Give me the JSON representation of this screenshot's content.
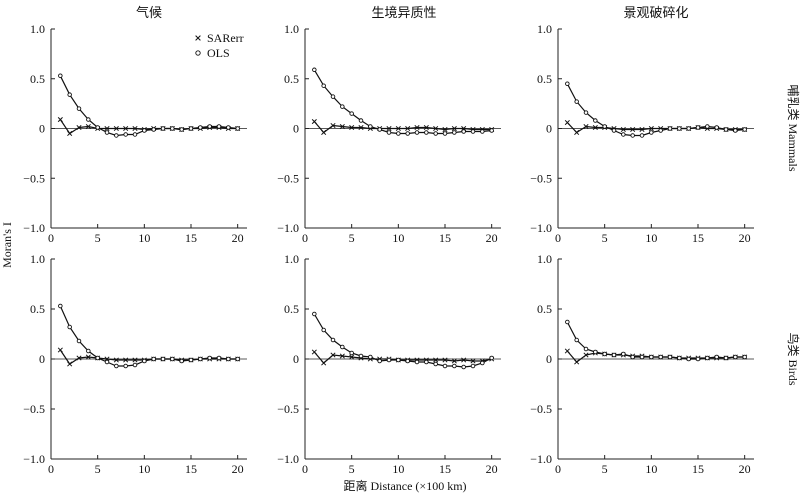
{
  "figure": {
    "col_titles": [
      "气候",
      "生境异质性",
      "景观破碎化"
    ],
    "row_labels": [
      "哺乳类 Mammals",
      "鸟类 Birds"
    ],
    "ylabel": "Moran's I",
    "xlabel": "距离 Distance (×100 km)"
  },
  "legend": {
    "items": [
      {
        "name": "SARerr",
        "marker": "x"
      },
      {
        "name": "OLS",
        "marker": "o"
      }
    ]
  },
  "colors": {
    "line": "#111111",
    "axis": "#222222",
    "background": "#ffffff"
  },
  "chart_data": [
    {
      "type": "line",
      "panel": "Mammals-Climate",
      "x": [
        1,
        2,
        3,
        4,
        5,
        6,
        7,
        8,
        9,
        10,
        11,
        12,
        13,
        14,
        15,
        16,
        17,
        18,
        19,
        20
      ],
      "xlim": [
        0,
        21
      ],
      "ylim": [
        -1.0,
        1.0
      ],
      "xticks": [
        0,
        5,
        10,
        15,
        20
      ],
      "yticks": [
        -1.0,
        -0.5,
        0,
        0.5,
        1.0
      ],
      "series": [
        {
          "name": "SARerr",
          "values": [
            0.09,
            -0.05,
            0.01,
            0.02,
            0.0,
            0.0,
            0.0,
            0.0,
            0.0,
            -0.01,
            0.0,
            0.0,
            0.0,
            -0.01,
            0.0,
            0.0,
            0.01,
            0.01,
            0.0,
            0.0
          ]
        },
        {
          "name": "OLS",
          "values": [
            0.53,
            0.34,
            0.2,
            0.09,
            0.01,
            -0.04,
            -0.07,
            -0.06,
            -0.06,
            -0.02,
            -0.01,
            0.0,
            0.0,
            -0.01,
            0.0,
            0.01,
            0.02,
            0.02,
            0.01,
            0.0
          ]
        }
      ]
    },
    {
      "type": "line",
      "panel": "Mammals-Habitat heterogeneity",
      "x": [
        1,
        2,
        3,
        4,
        5,
        6,
        7,
        8,
        9,
        10,
        11,
        12,
        13,
        14,
        15,
        16,
        17,
        18,
        19,
        20
      ],
      "xlim": [
        0,
        21
      ],
      "ylim": [
        -1.0,
        1.0
      ],
      "xticks": [
        0,
        5,
        10,
        15,
        20
      ],
      "yticks": [
        -1.0,
        -0.5,
        0,
        0.5,
        1.0
      ],
      "series": [
        {
          "name": "SARerr",
          "values": [
            0.07,
            -0.04,
            0.03,
            0.02,
            0.01,
            0.01,
            0.0,
            0.0,
            0.0,
            0.0,
            0.0,
            0.01,
            0.01,
            0.0,
            -0.01,
            0.0,
            0.0,
            -0.01,
            -0.01,
            -0.01
          ]
        },
        {
          "name": "OLS",
          "values": [
            0.59,
            0.43,
            0.32,
            0.22,
            0.15,
            0.08,
            0.02,
            -0.01,
            -0.04,
            -0.05,
            -0.05,
            -0.04,
            -0.04,
            -0.05,
            -0.05,
            -0.04,
            -0.03,
            -0.03,
            -0.03,
            -0.02
          ]
        }
      ]
    },
    {
      "type": "line",
      "panel": "Mammals-Landscape fragmentation",
      "x": [
        1,
        2,
        3,
        4,
        5,
        6,
        7,
        8,
        9,
        10,
        11,
        12,
        13,
        14,
        15,
        16,
        17,
        18,
        19,
        20
      ],
      "xlim": [
        0,
        21
      ],
      "ylim": [
        -1.0,
        1.0
      ],
      "xticks": [
        0,
        5,
        10,
        15,
        20
      ],
      "yticks": [
        -1.0,
        -0.5,
        0,
        0.5,
        1.0
      ],
      "series": [
        {
          "name": "SARerr",
          "values": [
            0.06,
            -0.04,
            0.02,
            0.01,
            0.01,
            0.0,
            -0.01,
            -0.01,
            -0.01,
            0.0,
            0.0,
            0.0,
            0.0,
            0.0,
            0.01,
            0.0,
            0.0,
            -0.01,
            -0.01,
            -0.01
          ]
        },
        {
          "name": "OLS",
          "values": [
            0.45,
            0.27,
            0.16,
            0.08,
            0.02,
            -0.02,
            -0.06,
            -0.07,
            -0.07,
            -0.04,
            -0.02,
            0.0,
            0.0,
            0.0,
            0.01,
            0.02,
            0.01,
            -0.01,
            -0.02,
            -0.01
          ]
        }
      ]
    },
    {
      "type": "line",
      "panel": "Birds-Climate",
      "x": [
        1,
        2,
        3,
        4,
        5,
        6,
        7,
        8,
        9,
        10,
        11,
        12,
        13,
        14,
        15,
        16,
        17,
        18,
        19,
        20
      ],
      "xlim": [
        0,
        21
      ],
      "ylim": [
        -1.0,
        1.0
      ],
      "xticks": [
        0,
        5,
        10,
        15,
        20
      ],
      "yticks": [
        -1.0,
        -0.5,
        0,
        0.5,
        1.0
      ],
      "series": [
        {
          "name": "SARerr",
          "values": [
            0.09,
            -0.05,
            0.01,
            0.02,
            0.01,
            0.0,
            -0.01,
            -0.01,
            -0.01,
            -0.01,
            0.0,
            0.0,
            0.0,
            -0.01,
            -0.01,
            0.0,
            0.0,
            0.0,
            0.0,
            0.0
          ]
        },
        {
          "name": "OLS",
          "values": [
            0.53,
            0.32,
            0.18,
            0.08,
            0.01,
            -0.03,
            -0.07,
            -0.07,
            -0.06,
            -0.02,
            0.0,
            0.0,
            0.0,
            -0.02,
            -0.01,
            0.0,
            0.01,
            0.01,
            0.0,
            0.0
          ]
        }
      ]
    },
    {
      "type": "line",
      "panel": "Birds-Habitat heterogeneity",
      "x": [
        1,
        2,
        3,
        4,
        5,
        6,
        7,
        8,
        9,
        10,
        11,
        12,
        13,
        14,
        15,
        16,
        17,
        18,
        19,
        20
      ],
      "xlim": [
        0,
        21
      ],
      "ylim": [
        -1.0,
        1.0
      ],
      "xticks": [
        0,
        5,
        10,
        15,
        20
      ],
      "yticks": [
        -1.0,
        -0.5,
        0,
        0.5,
        1.0
      ],
      "series": [
        {
          "name": "SARerr",
          "values": [
            0.07,
            -0.04,
            0.04,
            0.03,
            0.02,
            0.01,
            0.0,
            0.0,
            0.0,
            -0.01,
            -0.01,
            -0.01,
            -0.01,
            -0.01,
            -0.01,
            -0.02,
            -0.01,
            -0.02,
            -0.02,
            0.0
          ]
        },
        {
          "name": "OLS",
          "values": [
            0.45,
            0.29,
            0.19,
            0.12,
            0.06,
            0.03,
            0.02,
            -0.02,
            -0.01,
            -0.01,
            -0.02,
            -0.03,
            -0.03,
            -0.05,
            -0.07,
            -0.07,
            -0.08,
            -0.07,
            -0.04,
            0.01
          ]
        }
      ]
    },
    {
      "type": "line",
      "panel": "Birds-Landscape fragmentation",
      "x": [
        1,
        2,
        3,
        4,
        5,
        6,
        7,
        8,
        9,
        10,
        11,
        12,
        13,
        14,
        15,
        16,
        17,
        18,
        19,
        20
      ],
      "xlim": [
        0,
        21
      ],
      "ylim": [
        -1.0,
        1.0
      ],
      "xticks": [
        0,
        5,
        10,
        15,
        20
      ],
      "yticks": [
        -1.0,
        -0.5,
        0,
        0.5,
        1.0
      ],
      "series": [
        {
          "name": "SARerr",
          "values": [
            0.08,
            -0.03,
            0.04,
            0.06,
            0.05,
            0.04,
            0.04,
            0.03,
            0.03,
            0.02,
            0.02,
            0.02,
            0.01,
            0.01,
            0.01,
            0.01,
            0.01,
            0.01,
            0.02,
            0.02
          ]
        },
        {
          "name": "OLS",
          "values": [
            0.37,
            0.19,
            0.1,
            0.07,
            0.05,
            0.04,
            0.05,
            0.02,
            0.02,
            0.02,
            0.02,
            0.02,
            0.01,
            0.0,
            0.0,
            0.01,
            0.02,
            0.01,
            0.02,
            0.02
          ]
        }
      ]
    }
  ]
}
